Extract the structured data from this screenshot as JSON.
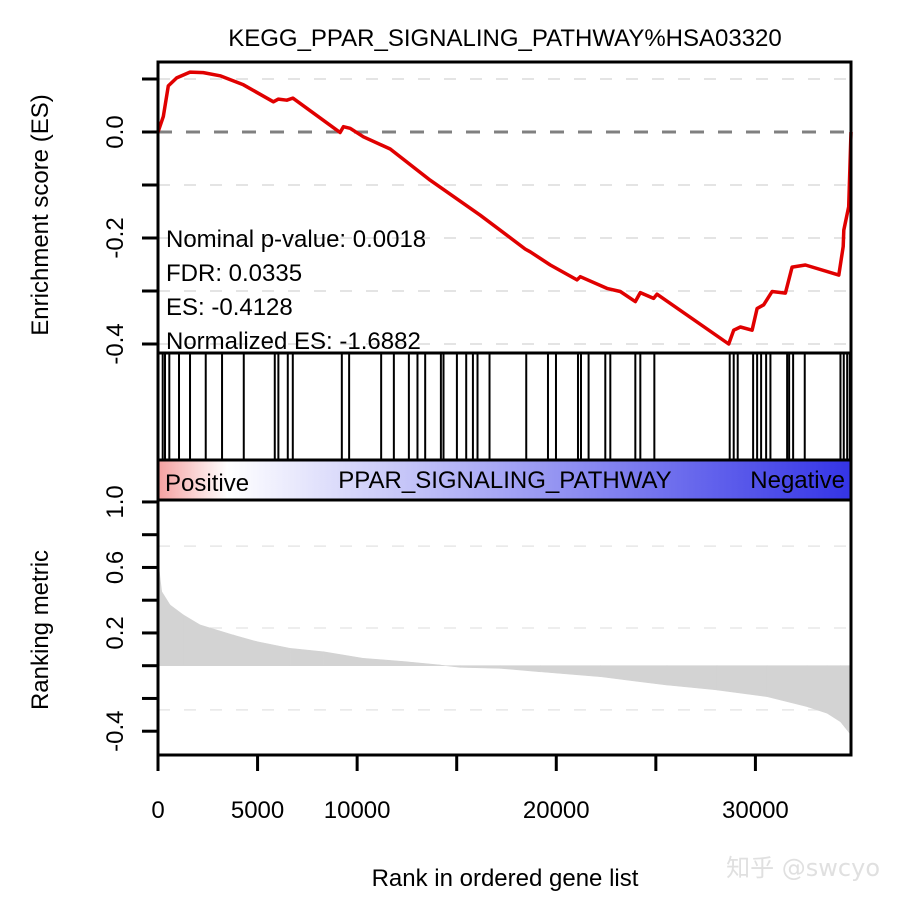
{
  "chart_data": {
    "type": "line",
    "title": "KEGG_PPAR_SIGNALING_PATHWAY%HSA03320",
    "xlabel": "Rank in ordered gene list",
    "xlim": [
      0,
      34800
    ],
    "x_ticks": [
      0,
      5000,
      10000,
      15000,
      20000,
      25000,
      30000
    ],
    "x_tick_labels": [
      "0",
      "5000",
      "10000",
      "",
      "20000",
      "",
      "30000"
    ],
    "es_panel": {
      "ylabel": "Enrichment score (ES)",
      "ylim": [
        -0.41,
        0.14
      ],
      "y_ticks": [
        0.1,
        0.0,
        -0.1,
        -0.2,
        -0.3,
        -0.4
      ],
      "y_tick_labels": [
        "",
        "0.0",
        "",
        "-0.2",
        "",
        "-0.4"
      ],
      "gridlines": [
        0.1,
        -0.1,
        -0.2,
        -0.3,
        -0.4
      ],
      "zero_line": 0.0,
      "line_color": "#e00000",
      "rank": [
        0,
        266,
        518,
        940,
        1608,
        2276,
        3116,
        4286,
        5794,
        6045,
        6467,
        6769,
        9146,
        9312,
        9648,
        10316,
        11658,
        13668,
        16181,
        18442,
        18693,
        19698,
        21040,
        21206,
        22547,
        23216,
        23969,
        24221,
        24889,
        25060,
        28658,
        28909,
        29246,
        29834,
        30085,
        30417,
        30839,
        31507,
        31844,
        32512,
        34185,
        34406,
        34436,
        34687,
        34800
      ],
      "es": [
        0,
        0.029,
        0.087,
        0.102,
        0.113,
        0.112,
        0.106,
        0.089,
        0.057,
        0.062,
        0.06,
        0.064,
        -0.001,
        0.01,
        0.007,
        -0.009,
        -0.032,
        -0.091,
        -0.157,
        -0.221,
        -0.226,
        -0.251,
        -0.279,
        -0.273,
        -0.295,
        -0.301,
        -0.32,
        -0.303,
        -0.314,
        -0.306,
        -0.4,
        -0.374,
        -0.368,
        -0.374,
        -0.333,
        -0.326,
        -0.301,
        -0.304,
        -0.255,
        -0.251,
        -0.27,
        -0.216,
        -0.185,
        -0.141,
        0
      ],
      "stats": [
        "Nominal p-value: 0.0018",
        "FDR: 0.0335",
        "ES: -0.4128",
        "Normalized ES: -1.6882"
      ]
    },
    "hits": [
      236,
      352,
      568,
      1055,
      1608,
      2397,
      3216,
      4307,
      5864,
      6045,
      6517,
      6769,
      9231,
      9598,
      11206,
      11844,
      12598,
      13030,
      13417,
      14206,
      14337,
      15010,
      15477,
      15814,
      16045,
      16648,
      18492,
      19583,
      19985,
      21090,
      21241,
      21623,
      22462,
      22714,
      23970,
      24221,
      24925,
      28709,
      28910,
      29111,
      29885,
      30086,
      30286,
      30538,
      30754,
      31593,
      31693,
      31894,
      32477,
      34271,
      34437,
      34608,
      34738
    ],
    "color_bar": {
      "left_label": "Positive",
      "center_label": "PPAR_SIGNALING_PATHWAY",
      "right_label": "Negative",
      "left_color": "#f4a0a0",
      "mid_color": "#ffffff",
      "right_color": "#3434e6"
    },
    "metric_panel": {
      "ylabel": "Ranking metric",
      "ylim": [
        -0.55,
        1.0
      ],
      "y_ticks": [
        1.0,
        0.8,
        0.6,
        0.4,
        0.2,
        0.0,
        -0.2,
        -0.4
      ],
      "y_tick_labels": [
        "1.0",
        "",
        "0.6",
        "",
        "0.2",
        "",
        "",
        "-0.4"
      ],
      "gridlines": [
        0.73,
        0.23,
        -0.27
      ],
      "fill_color": "#d3d3d3",
      "rank": [
        0,
        65,
        186,
        603,
        1271,
        2111,
        3784,
        4960,
        6633,
        8306,
        10316,
        12497,
        14171,
        15176,
        17186,
        19196,
        22211,
        25562,
        28075,
        30588,
        32598,
        33603,
        34271,
        34738,
        34800
      ],
      "metric": [
        0.62,
        0.574,
        0.452,
        0.371,
        0.31,
        0.249,
        0.187,
        0.147,
        0.106,
        0.085,
        0.045,
        0.024,
        0.004,
        -0.01,
        -0.016,
        -0.037,
        -0.067,
        -0.118,
        -0.148,
        -0.189,
        -0.25,
        -0.29,
        -0.342,
        -0.413,
        -0.43
      ]
    }
  },
  "watermark": "知乎 @swcyo"
}
